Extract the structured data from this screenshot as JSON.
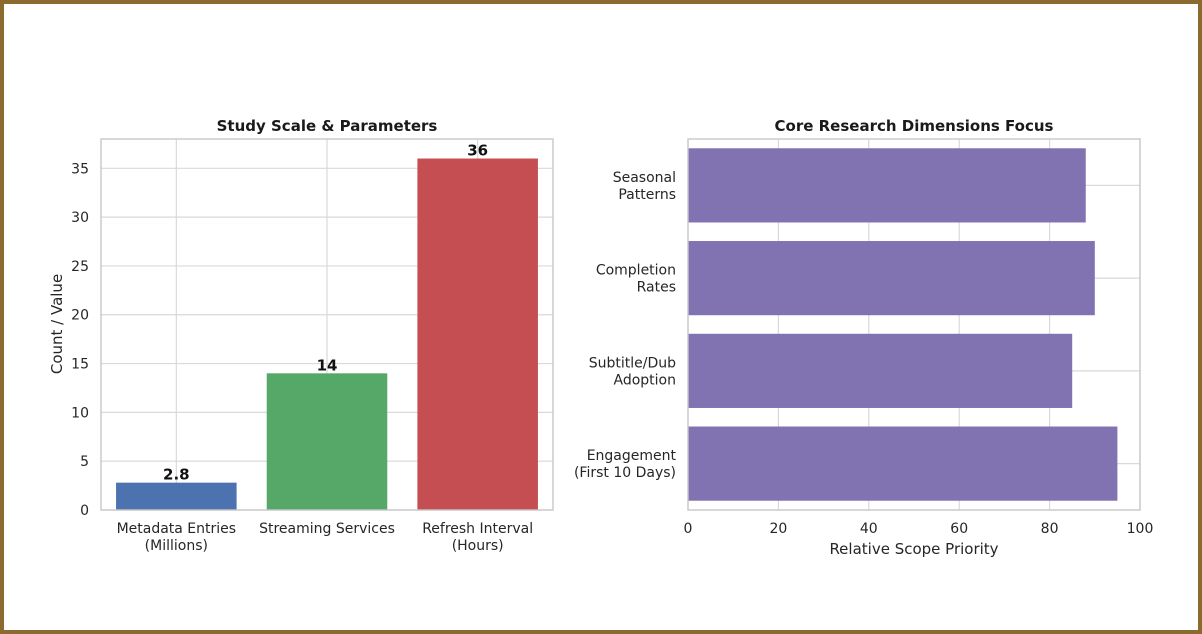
{
  "chart_data": [
    {
      "type": "bar",
      "orientation": "vertical",
      "title": "Study Scale & Parameters",
      "xlabel": "",
      "ylabel": "Count / Value",
      "categories": [
        [
          "Metadata Entries",
          "(Millions)"
        ],
        [
          "Streaming Services"
        ],
        [
          "Refresh Interval",
          "(Hours)"
        ]
      ],
      "values": [
        2.8,
        14,
        36
      ],
      "value_labels": [
        "2.8",
        "14",
        "36"
      ],
      "colors": [
        "#4c72b0",
        "#55a868",
        "#c44e52"
      ],
      "ylim": [
        0,
        38
      ],
      "yticks": [
        0,
        5,
        10,
        15,
        20,
        25,
        30,
        35
      ],
      "grid": true
    },
    {
      "type": "bar",
      "orientation": "horizontal",
      "title": "Core Research Dimensions Focus",
      "xlabel": "Relative Scope Priority",
      "ylabel": "",
      "categories": [
        [
          "Seasonal",
          "Patterns"
        ],
        [
          "Completion",
          "Rates"
        ],
        [
          "Subtitle/Dub",
          "Adoption"
        ],
        [
          "Engagement",
          "(First 10 Days)"
        ]
      ],
      "values": [
        88,
        90,
        85,
        95
      ],
      "colors": [
        "#8172b2"
      ],
      "xlim": [
        0,
        100
      ],
      "xticks": [
        0,
        20,
        40,
        60,
        80,
        100
      ],
      "grid": true
    }
  ]
}
